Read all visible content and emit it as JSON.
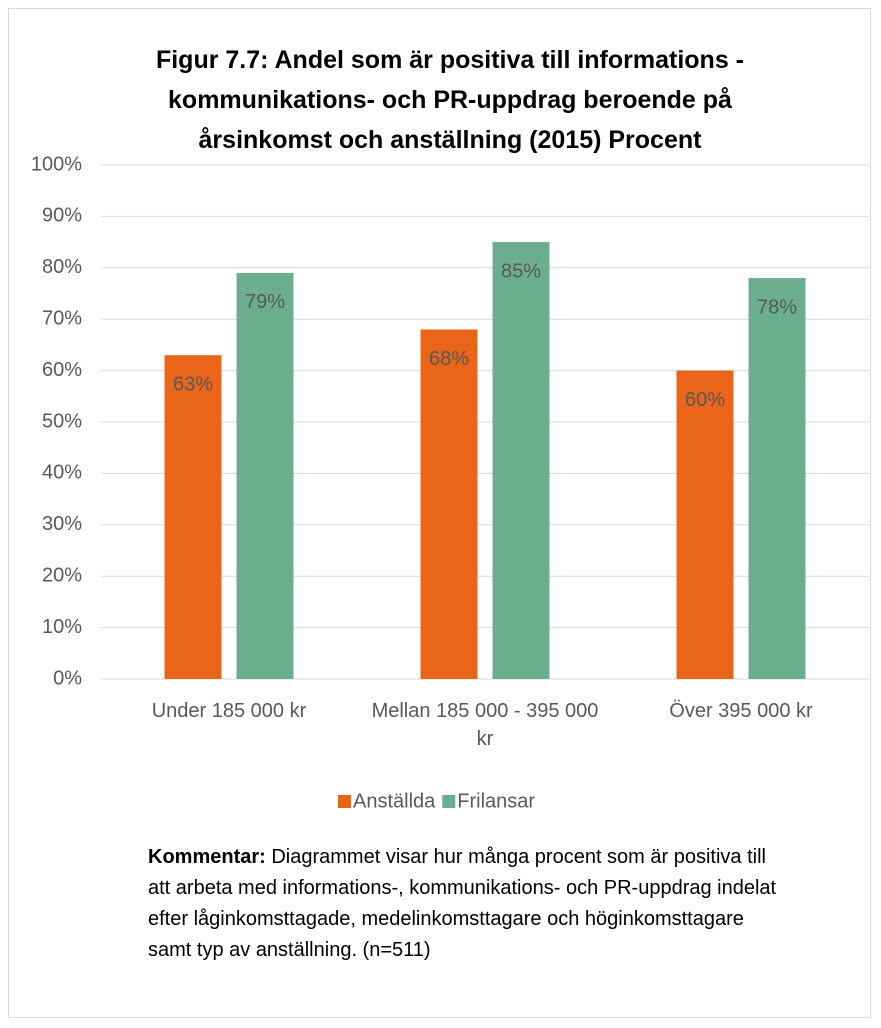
{
  "chart_data": {
    "type": "bar",
    "title": "Figur 7.7: Andel som är positiva till informations - kommunikations- och PR-uppdrag beroende på årsinkomst och anställning (2015) Procent",
    "categories": [
      "Under 185 000 kr",
      "Mellan 185 000 - 395 000 kr",
      "Över 395 000 kr"
    ],
    "series": [
      {
        "name": "Anställda",
        "color": "#e8651a",
        "values": [
          63,
          68,
          60
        ],
        "value_labels": [
          "63%",
          "68%",
          "60%"
        ]
      },
      {
        "name": "Frilansar",
        "color": "#6aae8f",
        "values": [
          79,
          85,
          78
        ],
        "value_labels": [
          "79%",
          "85%",
          "78%"
        ]
      }
    ],
    "ylim": [
      0,
      100
    ],
    "yticks": [
      {
        "value": 0,
        "label": "0%"
      },
      {
        "value": 10,
        "label": "10%"
      },
      {
        "value": 20,
        "label": "20%"
      },
      {
        "value": 30,
        "label": "30%"
      },
      {
        "value": 40,
        "label": "40%"
      },
      {
        "value": 50,
        "label": "50%"
      },
      {
        "value": 60,
        "label": "60%"
      },
      {
        "value": 70,
        "label": "70%"
      },
      {
        "value": 80,
        "label": "80%"
      },
      {
        "value": 90,
        "label": "90%"
      },
      {
        "value": 100,
        "label": "100%"
      }
    ],
    "grid": true,
    "legend": "bottom",
    "comment": {
      "label": "Kommentar:",
      "text": "Diagrammet visar hur många procent som är positiva till att arbeta med informations-, kommunikations- och PR-uppdrag indelat efter låginkomsttagade, medelinkomsttagare och höginkomsttagare samt typ av anställning. (n=511)"
    }
  }
}
